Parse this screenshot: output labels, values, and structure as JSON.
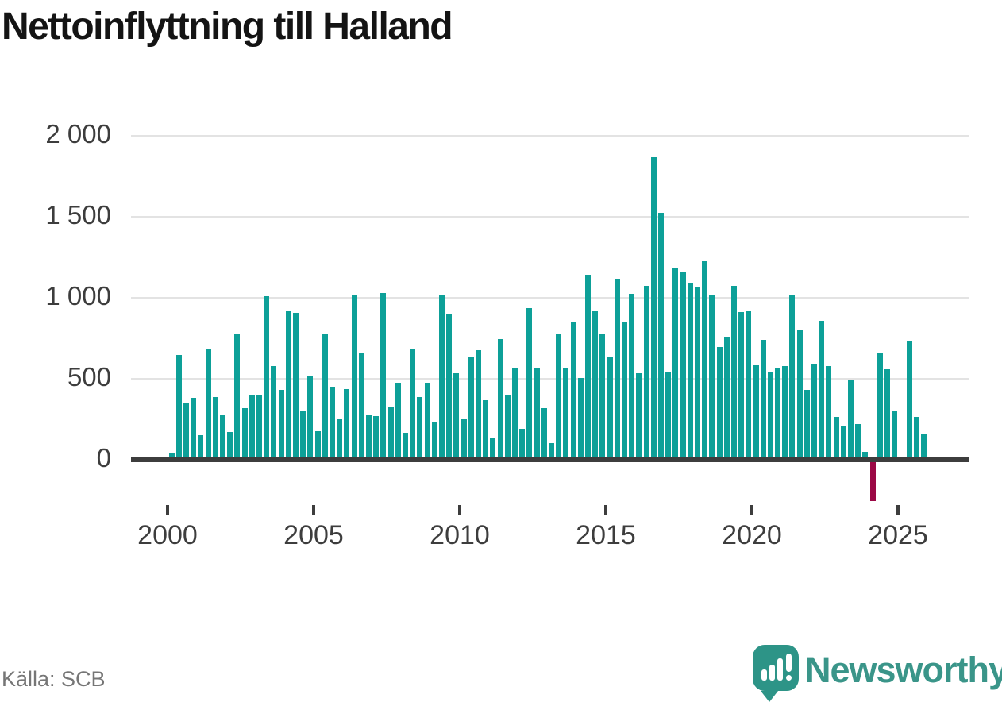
{
  "title": "Nettoinflyttning till Halland",
  "source": "Källa: SCB",
  "branding": {
    "wordmark": "Newsworthy",
    "icon": "newsworthy-logo-icon"
  },
  "colors": {
    "background": "#ffffff",
    "title_text": "#141414",
    "bar_positive": "#0da098",
    "bar_negative": "#9b0845",
    "grid": "#e3e3e3",
    "axis_line": "#3d3d3d",
    "tick_text": "#3d3d3d",
    "source_text": "#767676",
    "brand_teal": "#3a9589",
    "logo_bg": "#2d9487"
  },
  "chart_data": {
    "type": "bar",
    "title": "Nettoinflyttning till Halland",
    "ylabel": "",
    "xlabel": "",
    "grid": "horizontal",
    "legend": "none",
    "ylim": [
      -300,
      2100
    ],
    "yticks": [
      0,
      500,
      1000,
      1500,
      2000
    ],
    "ytick_labels": [
      "0",
      "500",
      "1 000",
      "1 500",
      "2 000"
    ],
    "xticks": [
      2000,
      2005,
      2010,
      2015,
      2020,
      2025
    ],
    "xtick_labels": [
      "2000",
      "2005",
      "2010",
      "2015",
      "2020",
      "2025"
    ],
    "freq": "quarterly",
    "x_start": "2000-Q1",
    "x_end": "2025-Q4",
    "x": [
      "2000-Q1",
      "2000-Q2",
      "2000-Q3",
      "2000-Q4",
      "2001-Q1",
      "2001-Q2",
      "2001-Q3",
      "2001-Q4",
      "2002-Q1",
      "2002-Q2",
      "2002-Q3",
      "2002-Q4",
      "2003-Q1",
      "2003-Q2",
      "2003-Q3",
      "2003-Q4",
      "2004-Q1",
      "2004-Q2",
      "2004-Q3",
      "2004-Q4",
      "2005-Q1",
      "2005-Q2",
      "2005-Q3",
      "2005-Q4",
      "2006-Q1",
      "2006-Q2",
      "2006-Q3",
      "2006-Q4",
      "2007-Q1",
      "2007-Q2",
      "2007-Q3",
      "2007-Q4",
      "2008-Q1",
      "2008-Q2",
      "2008-Q3",
      "2008-Q4",
      "2009-Q1",
      "2009-Q2",
      "2009-Q3",
      "2009-Q4",
      "2010-Q1",
      "2010-Q2",
      "2010-Q3",
      "2010-Q4",
      "2011-Q1",
      "2011-Q2",
      "2011-Q3",
      "2011-Q4",
      "2012-Q1",
      "2012-Q2",
      "2012-Q3",
      "2012-Q4",
      "2013-Q1",
      "2013-Q2",
      "2013-Q3",
      "2013-Q4",
      "2014-Q1",
      "2014-Q2",
      "2014-Q3",
      "2014-Q4",
      "2015-Q1",
      "2015-Q2",
      "2015-Q3",
      "2015-Q4",
      "2016-Q1",
      "2016-Q2",
      "2016-Q3",
      "2016-Q4",
      "2017-Q1",
      "2017-Q2",
      "2017-Q3",
      "2017-Q4",
      "2018-Q1",
      "2018-Q2",
      "2018-Q3",
      "2018-Q4",
      "2019-Q1",
      "2019-Q2",
      "2019-Q3",
      "2019-Q4",
      "2020-Q1",
      "2020-Q2",
      "2020-Q3",
      "2020-Q4",
      "2021-Q1",
      "2021-Q2",
      "2021-Q3",
      "2021-Q4",
      "2022-Q1",
      "2022-Q2",
      "2022-Q3",
      "2022-Q4",
      "2023-Q1",
      "2023-Q2",
      "2023-Q3",
      "2023-Q4",
      "2024-Q1",
      "2024-Q2",
      "2024-Q3",
      "2024-Q4",
      "2025-Q1",
      "2025-Q2",
      "2025-Q3",
      "2025-Q4"
    ],
    "values": [
      40,
      645,
      350,
      380,
      150,
      680,
      385,
      280,
      170,
      780,
      320,
      400,
      395,
      1010,
      580,
      430,
      915,
      905,
      300,
      520,
      175,
      780,
      450,
      255,
      435,
      1020,
      655,
      280,
      270,
      1030,
      330,
      475,
      165,
      685,
      385,
      475,
      230,
      1020,
      895,
      535,
      250,
      635,
      675,
      370,
      135,
      745,
      400,
      570,
      190,
      935,
      565,
      320,
      105,
      775,
      570,
      850,
      505,
      1140,
      915,
      780,
      630,
      1120,
      855,
      1025,
      535,
      1075,
      1870,
      1525,
      540,
      1185,
      1160,
      1095,
      1065,
      1225,
      1015,
      695,
      760,
      1075,
      910,
      915,
      585,
      740,
      545,
      565,
      580,
      1020,
      805,
      430,
      595,
      860,
      580,
      265,
      210,
      490,
      220,
      50,
      -240,
      660,
      560,
      305,
      0,
      735,
      265,
      160
    ]
  }
}
